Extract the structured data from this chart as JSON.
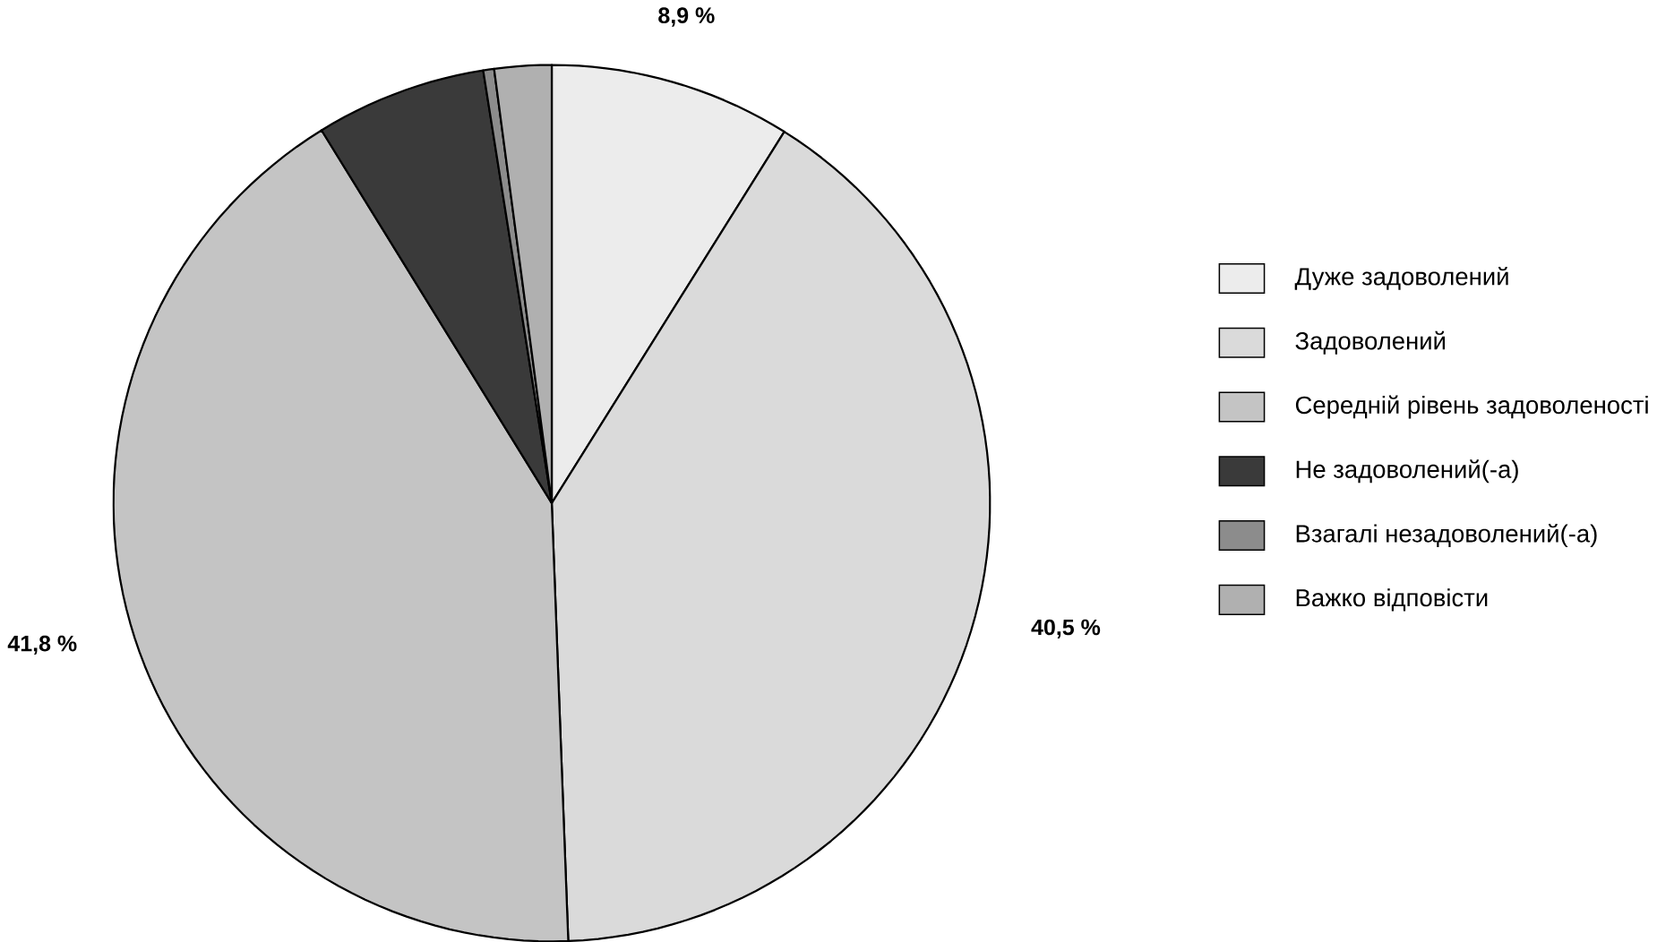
{
  "chart_data": {
    "type": "pie",
    "categories": [
      "Дуже задоволений",
      "Задоволений",
      "Середній рівень задоволеності",
      "Не задоволений(-а)",
      "Взагалі незадоволений(-а)",
      "Важко відповісти"
    ],
    "values": [
      8.9,
      40.5,
      41.8,
      6.3,
      0.4,
      2.1
    ],
    "colors": [
      "#ececec",
      "#dadada",
      "#c4c4c4",
      "#3a3a3a",
      "#8c8c8c",
      "#b0b0b0"
    ],
    "value_labels": [
      "8,9 %",
      "40,5 %",
      "41,8 %",
      null,
      null,
      null
    ],
    "legend": "right"
  }
}
